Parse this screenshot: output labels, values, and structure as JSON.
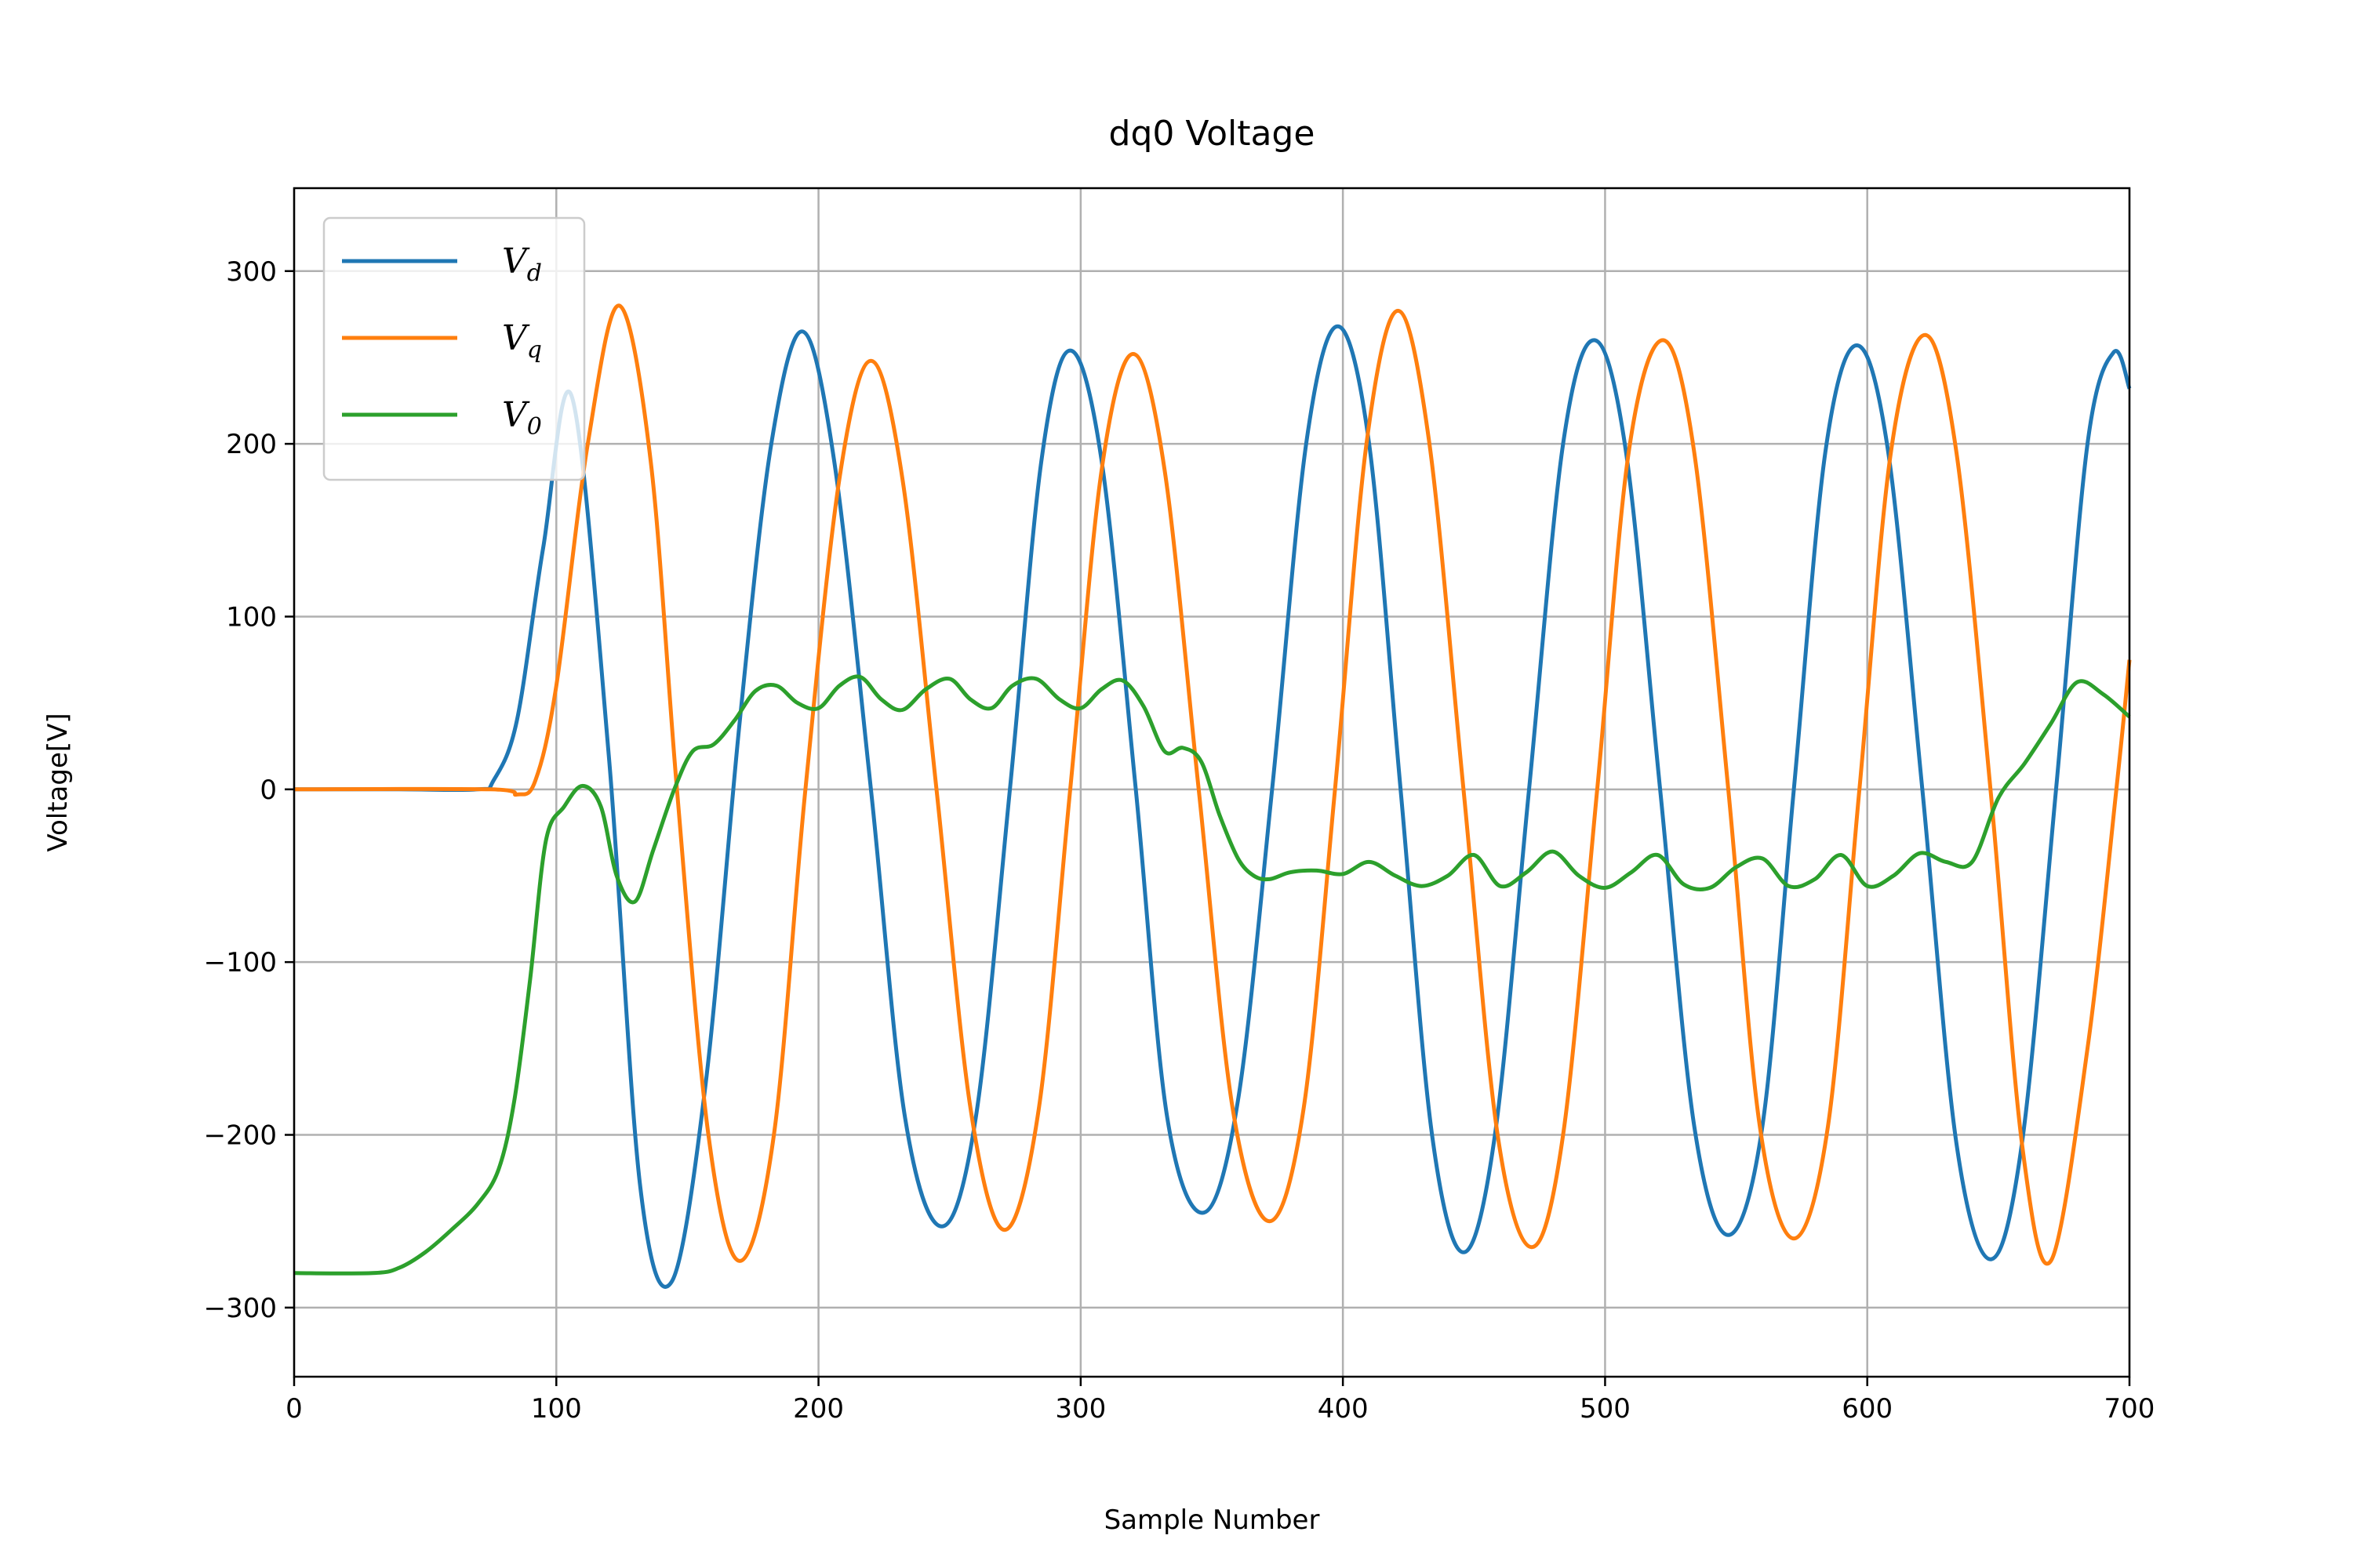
{
  "chart_data": {
    "type": "line",
    "title": "dq0 Voltage",
    "xlabel": "Sample Number",
    "ylabel": "Voltage[V]",
    "xlim": [
      0,
      700
    ],
    "ylim": [
      -340,
      348
    ],
    "xticks": [
      0,
      100,
      200,
      300,
      400,
      500,
      600,
      700
    ],
    "yticks": [
      -300,
      -200,
      -100,
      0,
      100,
      200,
      300
    ],
    "xtick_labels": [
      "0",
      "100",
      "200",
      "300",
      "400",
      "500",
      "600",
      "700"
    ],
    "ytick_labels": [
      "−300",
      "−200",
      "−100",
      "0",
      "100",
      "200",
      "300"
    ],
    "grid": true,
    "legend_position": "top-left",
    "series": [
      {
        "name": "V_d",
        "label_main": "V",
        "label_sub": "d",
        "color": "#1f77b4",
        "x": [
          0,
          40,
          70,
          76,
          85,
          95,
          106,
          120,
          132,
          144,
          157,
          170,
          182,
          194,
          206,
          220,
          233,
          247,
          260,
          273,
          285,
          296,
          308,
          321,
          333,
          347,
          360,
          373,
          386,
          398,
          410,
          422,
          434,
          446,
          458,
          471,
          484,
          496,
          508,
          521,
          534,
          547,
          560,
          572,
          584,
          596,
          608,
          621,
          634,
          647,
          659,
          672,
          684,
          694,
          700
        ],
        "y": [
          0,
          0,
          0,
          5,
          40,
          140,
          227,
          20,
          -230,
          -285,
          -170,
          40,
          200,
          265,
          190,
          0,
          -190,
          -253,
          -190,
          0,
          190,
          254,
          190,
          0,
          -190,
          -245,
          -180,
          0,
          200,
          268,
          200,
          0,
          -200,
          -268,
          -200,
          0,
          200,
          260,
          195,
          0,
          -195,
          -258,
          -195,
          0,
          195,
          257,
          195,
          0,
          -205,
          -272,
          -205,
          0,
          200,
          253,
          232
        ]
      },
      {
        "name": "V_q",
        "label_main": "V",
        "label_sub": "q",
        "color": "#ff7f0e",
        "x": [
          0,
          75,
          85,
          92,
          100,
          112,
          124,
          136,
          146,
          158,
          170,
          183,
          195,
          208,
          220,
          232,
          245,
          258,
          271,
          284,
          296,
          308,
          320,
          332,
          345,
          358,
          372,
          385,
          397,
          409,
          421,
          433,
          446,
          459,
          472,
          484,
          497,
          509,
          522,
          534,
          547,
          559,
          572,
          585,
          597,
          609,
          622,
          634,
          647,
          659,
          670,
          684,
          695,
          700
        ],
        "y": [
          0,
          0,
          -3,
          5,
          60,
          200,
          280,
          190,
          0,
          -200,
          -273,
          -200,
          0,
          180,
          248,
          180,
          0,
          -185,
          -255,
          -185,
          0,
          185,
          252,
          185,
          0,
          -185,
          -250,
          -185,
          0,
          200,
          277,
          200,
          0,
          -200,
          -265,
          -200,
          0,
          195,
          260,
          195,
          0,
          -195,
          -260,
          -195,
          0,
          195,
          263,
          195,
          0,
          -205,
          -273,
          -150,
          0,
          75
        ]
      },
      {
        "name": "V_0",
        "label_main": "V",
        "label_sub": "0",
        "color": "#2ca02c",
        "x": [
          0,
          30,
          40,
          50,
          60,
          70,
          78,
          84,
          90,
          96,
          103,
          110,
          117,
          123,
          130,
          137,
          145,
          152,
          160,
          168,
          176,
          184,
          192,
          200,
          208,
          216,
          224,
          232,
          241,
          250,
          258,
          266,
          274,
          283,
          292,
          300,
          308,
          316,
          324,
          332,
          339,
          346,
          353,
          360,
          366,
          372,
          380,
          390,
          400,
          410,
          420,
          430,
          440,
          450,
          460,
          470,
          480,
          490,
          500,
          510,
          520,
          530,
          540,
          550,
          560,
          570,
          580,
          590,
          600,
          610,
          620,
          630,
          640,
          650,
          660,
          670,
          680,
          690,
          700
        ],
        "y": [
          -280,
          -280,
          -277,
          -268,
          -255,
          -240,
          -220,
          -180,
          -110,
          -30,
          -10,
          2,
          -10,
          -50,
          -65,
          -35,
          0,
          22,
          26,
          40,
          57,
          60,
          50,
          47,
          60,
          65,
          52,
          46,
          58,
          64,
          52,
          47,
          60,
          64,
          52,
          47,
          58,
          63,
          48,
          22,
          24,
          16,
          -15,
          -40,
          -50,
          -52,
          -48,
          -47,
          -49,
          -42,
          -50,
          -56,
          -50,
          -38,
          -56,
          -48,
          -36,
          -50,
          -57,
          -48,
          -38,
          -55,
          -57,
          -45,
          -40,
          -56,
          -52,
          -38,
          -56,
          -50,
          -37,
          -42,
          -42,
          -5,
          15,
          38,
          62,
          55,
          42
        ]
      }
    ]
  }
}
